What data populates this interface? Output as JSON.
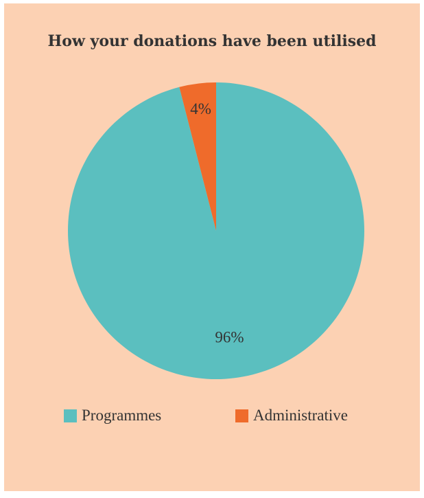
{
  "chart_data": {
    "type": "pie",
    "title": "How your donations have been utilised",
    "categories": [
      "Programmes",
      "Administrative"
    ],
    "values": [
      96,
      4
    ],
    "data_labels": [
      "96%",
      "4%"
    ],
    "colors": [
      "#5bbfbf",
      "#ef6b2b"
    ],
    "legend_position": "bottom"
  },
  "colors": {
    "background": "#fcd1b3",
    "text": "#333333"
  }
}
